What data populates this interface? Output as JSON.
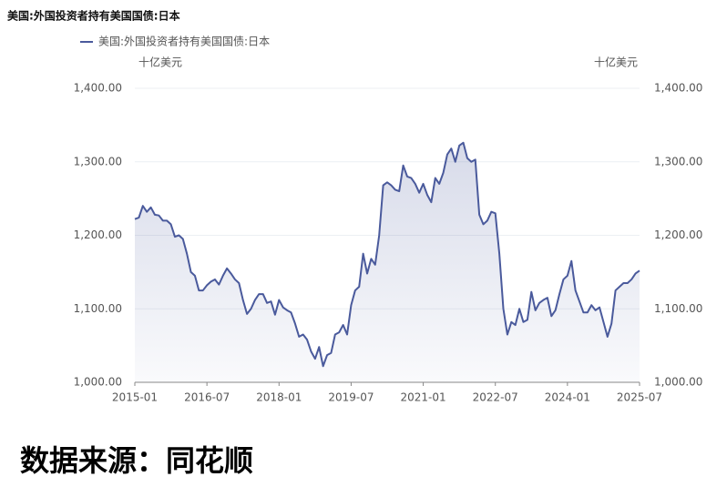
{
  "chart_data": {
    "type": "line",
    "title": "美国:外国投资者持有美国国债:日本",
    "y_unit": "十亿美元",
    "y2_unit": "十亿美元",
    "categories": [
      "2015-01",
      null,
      null,
      null,
      null,
      null,
      null,
      null,
      null,
      null,
      null,
      null,
      null,
      null,
      null,
      null,
      null,
      null,
      "2016-07",
      null,
      null,
      null,
      null,
      null,
      null,
      null,
      null,
      null,
      null,
      null,
      null,
      null,
      null,
      null,
      null,
      null,
      "2018-01",
      null,
      null,
      null,
      null,
      null,
      null,
      null,
      null,
      null,
      null,
      null,
      null,
      null,
      null,
      null,
      null,
      null,
      "2019-07",
      null,
      null,
      null,
      null,
      null,
      null,
      null,
      null,
      null,
      null,
      null,
      null,
      null,
      null,
      null,
      null,
      null,
      "2021-01",
      null,
      null,
      null,
      null,
      null,
      null,
      null,
      null,
      null,
      null,
      null,
      null,
      null,
      null,
      null,
      null,
      null,
      "2022-07",
      null,
      null,
      null,
      null,
      null,
      null,
      null,
      null,
      null,
      null,
      null,
      null,
      null,
      null,
      null,
      null,
      null,
      "2024-01",
      null,
      null,
      null,
      null,
      null,
      null,
      null,
      null,
      null,
      null,
      null,
      null,
      null,
      null,
      null,
      null,
      null,
      "2025-07"
    ],
    "series": [
      {
        "name": "美国:外国投资者持有美国国债:日本",
        "color": "#4a5a9c",
        "values": [
          1222,
          1224,
          1240,
          1232,
          1238,
          1228,
          1227,
          1220,
          1220,
          1215,
          1198,
          1200,
          1195,
          1175,
          1150,
          1145,
          1125,
          1125,
          1132,
          1137,
          1140,
          1133,
          1145,
          1155,
          1148,
          1140,
          1135,
          1112,
          1093,
          1100,
          1112,
          1120,
          1120,
          1108,
          1110,
          1092,
          1112,
          1102,
          1098,
          1095,
          1080,
          1062,
          1065,
          1058,
          1042,
          1032,
          1048,
          1022,
          1037,
          1040,
          1065,
          1068,
          1078,
          1065,
          1105,
          1125,
          1130,
          1175,
          1148,
          1168,
          1160,
          1200,
          1268,
          1272,
          1268,
          1262,
          1260,
          1295,
          1280,
          1278,
          1270,
          1258,
          1270,
          1255,
          1245,
          1278,
          1270,
          1285,
          1310,
          1318,
          1300,
          1322,
          1326,
          1305,
          1300,
          1303,
          1228,
          1215,
          1220,
          1232,
          1230,
          1175,
          1100,
          1065,
          1082,
          1078,
          1100,
          1082,
          1085,
          1123,
          1098,
          1108,
          1112,
          1115,
          1090,
          1098,
          1120,
          1140,
          1145,
          1165,
          1125,
          1110,
          1095,
          1095,
          1105,
          1098,
          1102,
          1082,
          1062,
          1080,
          1125,
          1130,
          1135,
          1135,
          1140,
          1148,
          1152
        ]
      }
    ],
    "ylim": [
      1000,
      1400
    ],
    "yticks": [
      {
        "value": 1000,
        "label": "1,000.00"
      },
      {
        "value": 1100,
        "label": "1,100.00"
      },
      {
        "value": 1200,
        "label": "1,200.00"
      },
      {
        "value": 1300,
        "label": "1,300.00"
      },
      {
        "value": 1400,
        "label": "1,400.00"
      }
    ],
    "y2lim": [
      1000,
      1400
    ],
    "y2ticks": [
      {
        "value": 1000,
        "label": "1,000.00"
      },
      {
        "value": 1100,
        "label": "1,100.00"
      },
      {
        "value": 1200,
        "label": "1,200.00"
      },
      {
        "value": 1300,
        "label": "1,300.00"
      },
      {
        "value": 1400,
        "label": "1,400.00"
      }
    ],
    "grid": true,
    "source": "数据来源：同花顺"
  }
}
